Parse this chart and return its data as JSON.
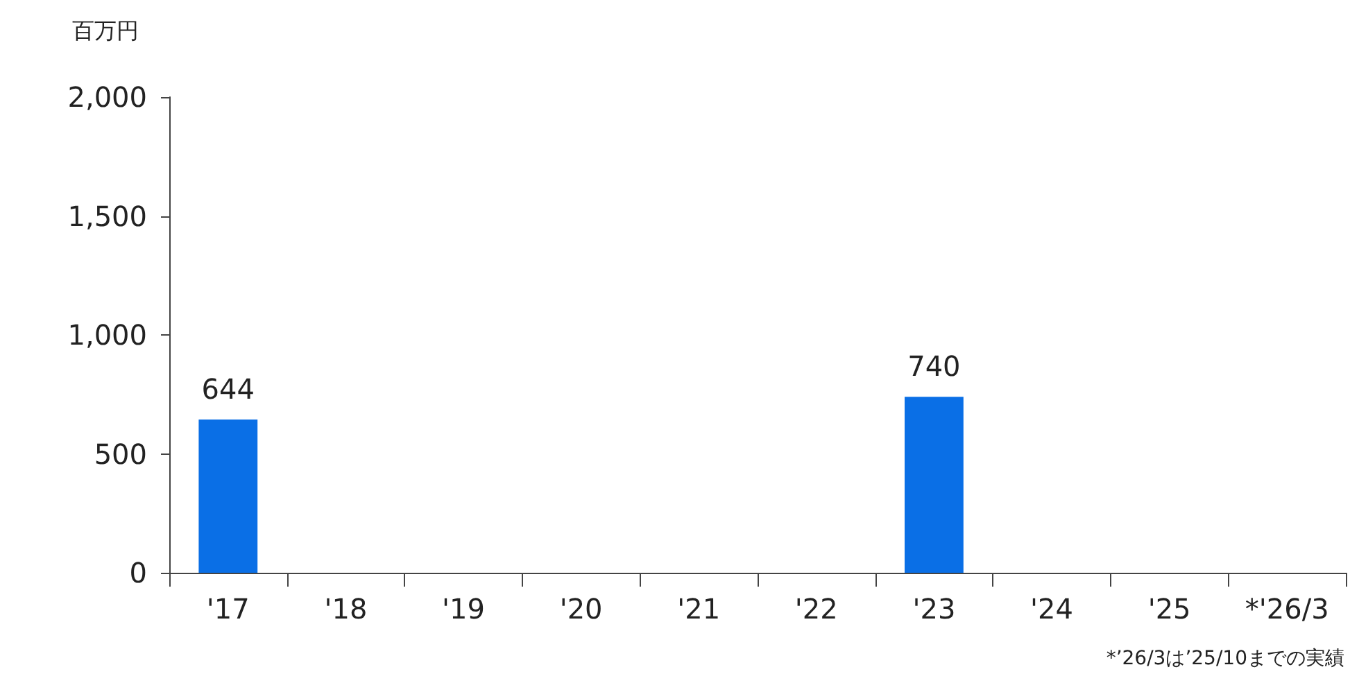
{
  "chart_data": {
    "type": "bar",
    "ylabel": "百万円",
    "categories": [
      "'17",
      "'18",
      "'19",
      "'20",
      "'21",
      "'22",
      "'23",
      "'24",
      "'25",
      "*'26/3"
    ],
    "values": [
      644,
      null,
      null,
      null,
      null,
      null,
      740,
      null,
      null,
      null
    ],
    "color": "#0a6fe6",
    "ylim": [
      0,
      2000
    ],
    "yticks": [
      0,
      500,
      {
        "value": 1000,
        "label": "1,000"
      },
      {
        "value": 1500,
        "label": "1,500"
      },
      {
        "value": 2000,
        "label": "2,000"
      }
    ],
    "data_labels": true,
    "grid": false,
    "annotations": [
      "*’26/3は’25/10までの実績"
    ]
  }
}
